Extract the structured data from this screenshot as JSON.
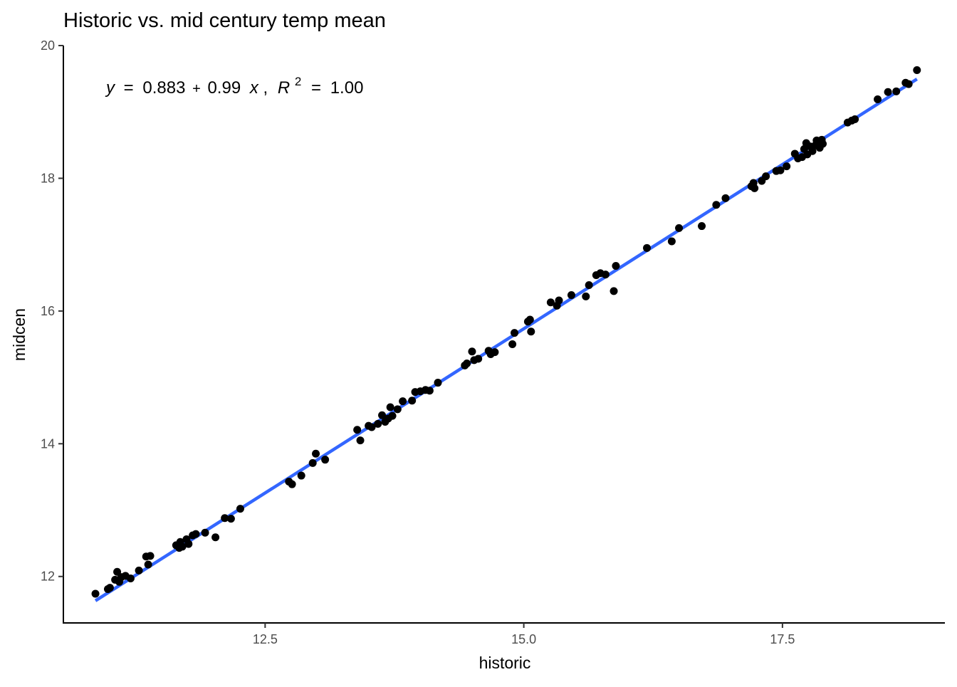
{
  "chart_data": {
    "type": "scatter",
    "title": "Historic vs. mid century temp mean",
    "xlabel": "historic",
    "ylabel": "midcen",
    "xlim": [
      10.55,
      19.07
    ],
    "ylim": [
      11.3,
      20.0
    ],
    "x_ticks": [
      12.5,
      15.0,
      17.5
    ],
    "x_tick_labels": [
      "12.5",
      "15.0",
      "17.5"
    ],
    "y_ticks": [
      12,
      14,
      16,
      18,
      20
    ],
    "y_tick_labels": [
      "12",
      "14",
      "16",
      "18",
      "20"
    ],
    "grid": false,
    "legend": "none",
    "equation": {
      "y_var": "y",
      "intercept_text": "0.883",
      "plus": "+",
      "slope_text": "0.99",
      "x_var": "x",
      "r2_var": "R",
      "r2_sup": "2",
      "r2_text": "1.00",
      "eq_sign": "=",
      "comma": ","
    },
    "fit_line": {
      "intercept": 0.883,
      "slope": 0.99,
      "x_range": [
        10.86,
        18.8
      ],
      "color": "#3366FF"
    },
    "point_color": "#000000",
    "points": [
      [
        10.86,
        11.74
      ],
      [
        10.98,
        11.81
      ],
      [
        11.0,
        11.83
      ],
      [
        11.05,
        11.95
      ],
      [
        11.07,
        12.07
      ],
      [
        11.09,
        11.92
      ],
      [
        11.11,
        11.99
      ],
      [
        11.15,
        12.01
      ],
      [
        11.2,
        11.97
      ],
      [
        11.28,
        12.09
      ],
      [
        11.35,
        12.3
      ],
      [
        11.37,
        12.18
      ],
      [
        11.39,
        12.31
      ],
      [
        11.64,
        12.47
      ],
      [
        11.67,
        12.43
      ],
      [
        11.68,
        12.52
      ],
      [
        11.7,
        12.45
      ],
      [
        11.74,
        12.56
      ],
      [
        11.76,
        12.49
      ],
      [
        11.8,
        12.62
      ],
      [
        11.83,
        12.64
      ],
      [
        11.92,
        12.66
      ],
      [
        12.02,
        12.59
      ],
      [
        12.11,
        12.88
      ],
      [
        12.17,
        12.87
      ],
      [
        12.26,
        13.02
      ],
      [
        12.73,
        13.43
      ],
      [
        12.76,
        13.39
      ],
      [
        12.85,
        13.52
      ],
      [
        12.96,
        13.71
      ],
      [
        12.99,
        13.85
      ],
      [
        13.08,
        13.76
      ],
      [
        13.39,
        14.21
      ],
      [
        13.42,
        14.05
      ],
      [
        13.5,
        14.27
      ],
      [
        13.53,
        14.25
      ],
      [
        13.59,
        14.3
      ],
      [
        13.63,
        14.43
      ],
      [
        13.66,
        14.33
      ],
      [
        13.69,
        14.38
      ],
      [
        13.71,
        14.55
      ],
      [
        13.73,
        14.42
      ],
      [
        13.78,
        14.52
      ],
      [
        13.83,
        14.64
      ],
      [
        13.92,
        14.65
      ],
      [
        13.95,
        14.78
      ],
      [
        14.0,
        14.79
      ],
      [
        14.05,
        14.81
      ],
      [
        14.09,
        14.8
      ],
      [
        14.17,
        14.92
      ],
      [
        14.43,
        15.18
      ],
      [
        14.45,
        15.21
      ],
      [
        14.5,
        15.39
      ],
      [
        14.52,
        15.26
      ],
      [
        14.56,
        15.28
      ],
      [
        14.66,
        15.4
      ],
      [
        14.68,
        15.35
      ],
      [
        14.72,
        15.38
      ],
      [
        14.89,
        15.5
      ],
      [
        14.91,
        15.67
      ],
      [
        15.04,
        15.84
      ],
      [
        15.06,
        15.87
      ],
      [
        15.07,
        15.69
      ],
      [
        15.26,
        16.13
      ],
      [
        15.32,
        16.08
      ],
      [
        15.34,
        16.16
      ],
      [
        15.46,
        16.24
      ],
      [
        15.6,
        16.22
      ],
      [
        15.63,
        16.39
      ],
      [
        15.7,
        16.54
      ],
      [
        15.74,
        16.57
      ],
      [
        15.79,
        16.55
      ],
      [
        15.87,
        16.3
      ],
      [
        15.89,
        16.68
      ],
      [
        16.19,
        16.95
      ],
      [
        16.43,
        17.05
      ],
      [
        16.5,
        17.25
      ],
      [
        16.72,
        17.28
      ],
      [
        16.86,
        17.6
      ],
      [
        16.95,
        17.7
      ],
      [
        17.2,
        17.88
      ],
      [
        17.22,
        17.93
      ],
      [
        17.23,
        17.85
      ],
      [
        17.3,
        17.96
      ],
      [
        17.34,
        18.03
      ],
      [
        17.44,
        18.11
      ],
      [
        17.48,
        18.12
      ],
      [
        17.54,
        18.18
      ],
      [
        17.62,
        18.37
      ],
      [
        17.65,
        18.3
      ],
      [
        17.69,
        18.32
      ],
      [
        17.71,
        18.44
      ],
      [
        17.73,
        18.53
      ],
      [
        17.74,
        18.36
      ],
      [
        17.77,
        18.48
      ],
      [
        17.79,
        18.41
      ],
      [
        17.82,
        18.5
      ],
      [
        17.83,
        18.57
      ],
      [
        17.86,
        18.46
      ],
      [
        17.88,
        18.58
      ],
      [
        17.89,
        18.52
      ],
      [
        18.13,
        18.84
      ],
      [
        18.17,
        18.87
      ],
      [
        18.2,
        18.89
      ],
      [
        18.42,
        19.19
      ],
      [
        18.52,
        19.3
      ],
      [
        18.6,
        19.31
      ],
      [
        18.69,
        19.44
      ],
      [
        18.72,
        19.42
      ],
      [
        18.8,
        19.63
      ]
    ]
  }
}
